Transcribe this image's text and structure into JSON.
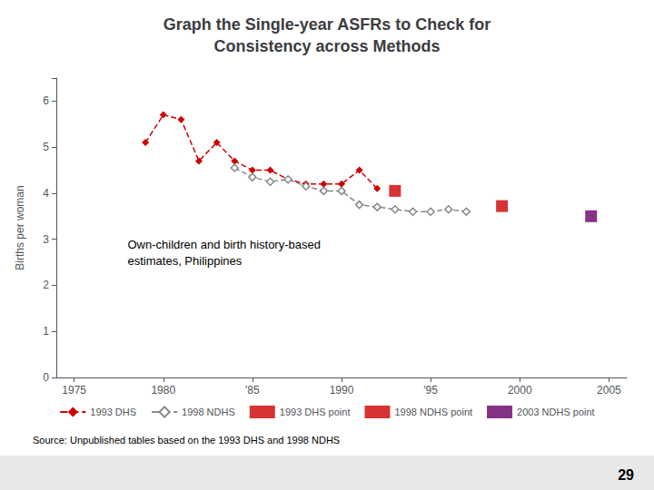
{
  "chart_data": {
    "type": "line",
    "title": "Graph the Single-year ASFRs to Check for\nConsistency across Methods",
    "y_label": "Births per woman",
    "xlim": [
      1974,
      2006
    ],
    "xticks": [
      1975,
      1980,
      {
        "value": 1985,
        "label": "'85"
      },
      1990,
      {
        "value": 1995,
        "label": "'95"
      },
      2000,
      2005
    ],
    "ylim": [
      0,
      6.5
    ],
    "yticks": [
      0,
      1,
      2,
      3,
      4,
      5,
      6
    ],
    "grid": false,
    "legend": "bottom",
    "annotations": [
      {
        "text": "Own-children and birth history-based\nestimates, Philippines",
        "x": 1978,
        "y": 2.7
      }
    ],
    "source": "Source: Unpublished tables based on the 1993 DHS and 1998 NDHS",
    "page_number": "29",
    "series": [
      {
        "name": "1993 DHS",
        "type": "line",
        "color": "#cc0000",
        "marker": "diamond",
        "line_style": "dashed",
        "x": [
          1979,
          1980,
          1981,
          1982,
          1983,
          1984,
          1985,
          1986,
          1987,
          1988,
          1989,
          1990,
          1991,
          1992
        ],
        "values": [
          5.1,
          5.7,
          5.6,
          4.7,
          5.1,
          4.7,
          4.5,
          4.5,
          4.3,
          4.2,
          4.2,
          4.2,
          4.5,
          4.1
        ]
      },
      {
        "name": "1998 NDHS",
        "type": "line",
        "color": "#888888",
        "marker": "open_diamond",
        "line_style": "dashed",
        "x": [
          1984,
          1985,
          1986,
          1987,
          1988,
          1989,
          1990,
          1991,
          1992,
          1993,
          1994,
          1995,
          1996,
          1997
        ],
        "values": [
          4.55,
          4.35,
          4.25,
          4.3,
          4.15,
          4.05,
          4.05,
          3.75,
          3.7,
          3.65,
          3.6,
          3.6,
          3.65,
          3.6
        ]
      },
      {
        "name": "1993 DHS point",
        "type": "scatter",
        "color": "#cc0000",
        "marker": "square",
        "x": [
          1993
        ],
        "values": [
          4.05
        ]
      },
      {
        "name": "1998 NDHS point",
        "type": "scatter",
        "color": "#cc0000",
        "marker": "square",
        "x": [
          1999
        ],
        "values": [
          3.72
        ]
      },
      {
        "name": "2003 NDHS point",
        "type": "scatter",
        "color": "#660066",
        "marker": "square",
        "x": [
          2004
        ],
        "values": [
          3.5
        ]
      }
    ]
  }
}
